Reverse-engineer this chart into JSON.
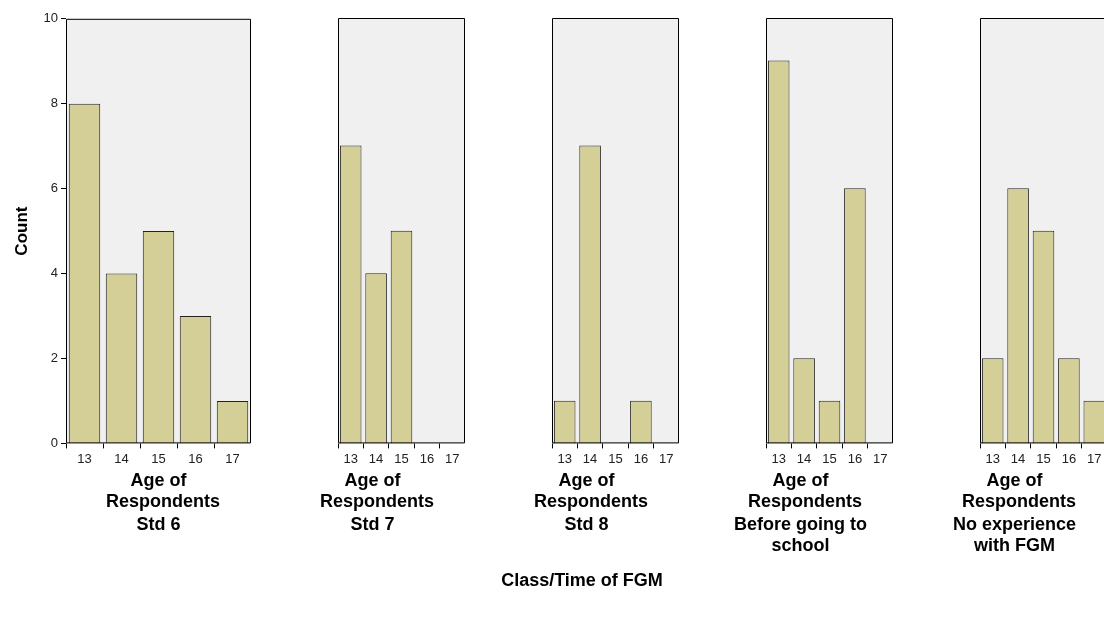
{
  "chart_data": [
    {
      "type": "bar",
      "xlabel": "Age of Respondents",
      "subtitle": "Std 6",
      "ylabel": "Count",
      "categories": [
        "13",
        "14",
        "15",
        "16",
        "17"
      ],
      "values": [
        8,
        4,
        5,
        3,
        1
      ],
      "color": "#d4cf97",
      "ylim": [
        0,
        10
      ],
      "yticks": [
        0,
        2,
        4,
        6,
        8,
        10
      ],
      "annotations": [
        "Class/Time of FGM"
      ]
    },
    {
      "type": "bar",
      "xlabel": "Age of Respondents",
      "subtitle": "Std 7",
      "categories": [
        "13",
        "14",
        "15",
        "16",
        "17"
      ],
      "values": [
        7,
        4,
        5,
        0,
        0
      ],
      "color": "#d4cf97",
      "ylim": [
        0,
        10
      ],
      "yticks": [
        0,
        2,
        4,
        6,
        8,
        10
      ],
      "tick_labels": "x"
    },
    {
      "type": "bar",
      "xlabel": "Age of Respondents",
      "subtitle": "Std 8",
      "categories": [
        "13",
        "14",
        "15",
        "16",
        "17"
      ],
      "values": [
        1,
        7,
        0,
        1,
        0
      ],
      "color": "#d4cf97",
      "ylim": [
        0,
        10
      ],
      "yticks": [
        0,
        2,
        4,
        6,
        8,
        10
      ],
      "tick_labels": "x"
    },
    {
      "type": "bar",
      "xlabel": "Age of Respondents",
      "subtitle": "Before going to school",
      "categories": [
        "13",
        "14",
        "15",
        "16",
        "17"
      ],
      "values": [
        9,
        2,
        1,
        6,
        0
      ],
      "color": "#d4cf97",
      "ylim": [
        0,
        10
      ],
      "yticks": [
        0,
        2,
        4,
        6,
        8,
        10
      ],
      "tick_labels": "x"
    },
    {
      "type": "bar",
      "xlabel": "Age of Respondents",
      "subtitle": "No experience with FGM",
      "categories": [
        "13",
        "14",
        "15",
        "16",
        "17"
      ],
      "values": [
        2,
        6,
        5,
        2,
        1
      ],
      "color": "#d4cf97",
      "ylim": [
        0,
        10
      ],
      "yticks": [
        0,
        2,
        4,
        6,
        8,
        10
      ],
      "tick_labels": "x"
    }
  ]
}
